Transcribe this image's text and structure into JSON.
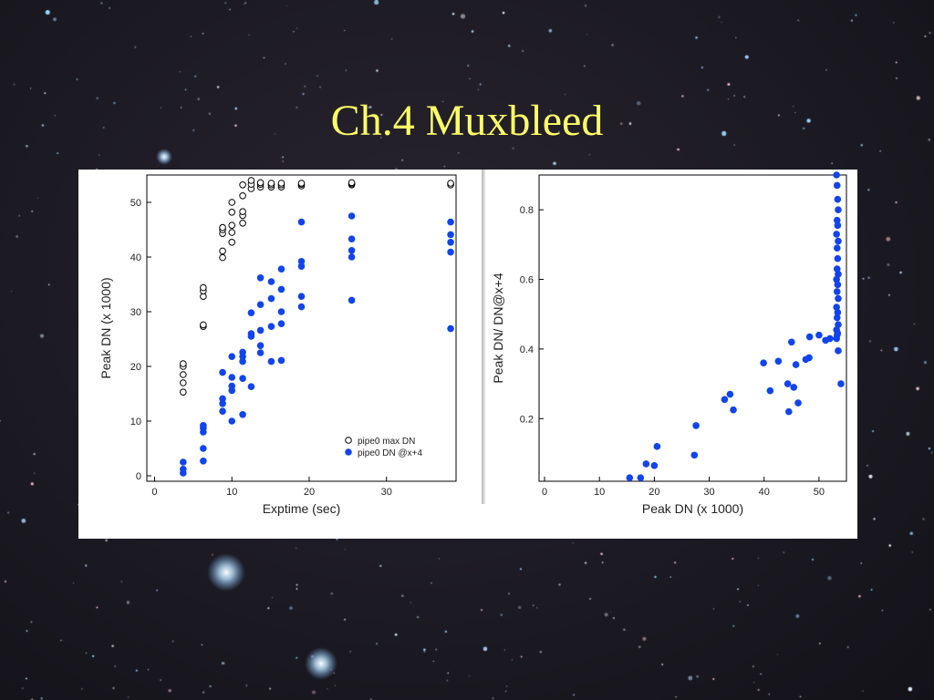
{
  "slide": {
    "title": "Ch.4 Muxbleed"
  },
  "colors": {
    "background": "#1c1a22",
    "title": "#ffff66",
    "panel": "#ffffff",
    "series_blue": "#1144ee",
    "open_marker": "#000000"
  },
  "chart_data": [
    {
      "type": "scatter",
      "title": "",
      "xlabel": "Exptime (sec)",
      "ylabel": "Peak DN (x 1000)",
      "xlim": [
        -1,
        39
      ],
      "ylim": [
        -1,
        55
      ],
      "x_ticks": [
        "0",
        "10",
        "20",
        "30"
      ],
      "y_ticks": [
        "0",
        "10",
        "20",
        "30",
        "40",
        "50"
      ],
      "grid": false,
      "legend": {
        "position": "bottom-right"
      },
      "series": [
        {
          "name": "pipe0 max DN",
          "marker": "open-circle",
          "color": "#000000",
          "points": [
            [
              3.7,
              15.3
            ],
            [
              3.7,
              17.0
            ],
            [
              3.7,
              18.5
            ],
            [
              3.7,
              20.0
            ],
            [
              3.7,
              20.5
            ],
            [
              6.3,
              27.3
            ],
            [
              6.3,
              27.6
            ],
            [
              6.3,
              32.8
            ],
            [
              6.3,
              33.8
            ],
            [
              6.3,
              34.4
            ],
            [
              8.8,
              39.9
            ],
            [
              8.8,
              41.1
            ],
            [
              8.8,
              44.3
            ],
            [
              8.8,
              45.0
            ],
            [
              8.8,
              45.4
            ],
            [
              10.0,
              42.7
            ],
            [
              10.0,
              44.5
            ],
            [
              10.0,
              45.8
            ],
            [
              10.0,
              48.2
            ],
            [
              10.0,
              50.0
            ],
            [
              11.4,
              46.2
            ],
            [
              11.4,
              47.6
            ],
            [
              11.4,
              48.3
            ],
            [
              11.4,
              51.2
            ],
            [
              11.4,
              53.2
            ],
            [
              12.5,
              52.5
            ],
            [
              12.5,
              53.3
            ],
            [
              12.5,
              54.0
            ],
            [
              13.7,
              52.8
            ],
            [
              13.7,
              53.3
            ],
            [
              13.7,
              53.6
            ],
            [
              15.1,
              52.8
            ],
            [
              15.1,
              53.2
            ],
            [
              15.1,
              53.5
            ],
            [
              16.4,
              52.8
            ],
            [
              16.4,
              53.2
            ],
            [
              16.4,
              53.5
            ],
            [
              19.0,
              53.0
            ],
            [
              19.0,
              53.3
            ],
            [
              19.0,
              53.5
            ],
            [
              25.5,
              53.2
            ],
            [
              25.5,
              53.4
            ],
            [
              25.5,
              53.6
            ],
            [
              38.3,
              53.2
            ],
            [
              38.3,
              53.5
            ]
          ]
        },
        {
          "name": "pipe0 DN @x+4",
          "marker": "filled-circle",
          "color": "#1144ee",
          "points": [
            [
              3.7,
              0.5
            ],
            [
              3.7,
              1.2
            ],
            [
              3.7,
              2.5
            ],
            [
              6.3,
              2.7
            ],
            [
              6.3,
              5.0
            ],
            [
              6.3,
              8.0
            ],
            [
              6.3,
              8.7
            ],
            [
              6.3,
              9.2
            ],
            [
              8.8,
              11.8
            ],
            [
              8.8,
              13.2
            ],
            [
              8.8,
              14.1
            ],
            [
              8.8,
              18.9
            ],
            [
              10.0,
              10.0
            ],
            [
              10.0,
              15.6
            ],
            [
              10.0,
              16.4
            ],
            [
              10.0,
              18.0
            ],
            [
              10.0,
              21.8
            ],
            [
              11.4,
              11.2
            ],
            [
              11.4,
              17.8
            ],
            [
              11.4,
              20.9
            ],
            [
              11.4,
              21.8
            ],
            [
              11.4,
              22.6
            ],
            [
              12.5,
              16.3
            ],
            [
              12.5,
              25.5
            ],
            [
              12.5,
              26.0
            ],
            [
              12.5,
              29.8
            ],
            [
              13.7,
              22.5
            ],
            [
              13.7,
              23.8
            ],
            [
              13.7,
              26.6
            ],
            [
              13.7,
              31.3
            ],
            [
              13.7,
              36.2
            ],
            [
              15.1,
              20.9
            ],
            [
              15.1,
              27.3
            ],
            [
              15.1,
              32.4
            ],
            [
              15.1,
              35.5
            ],
            [
              16.4,
              21.1
            ],
            [
              16.4,
              27.8
            ],
            [
              16.4,
              30.0
            ],
            [
              16.4,
              34.1
            ],
            [
              16.4,
              37.8
            ],
            [
              19.0,
              30.9
            ],
            [
              19.0,
              32.8
            ],
            [
              19.0,
              38.3
            ],
            [
              19.0,
              39.2
            ],
            [
              19.0,
              46.4
            ],
            [
              25.5,
              32.1
            ],
            [
              25.5,
              40.0
            ],
            [
              25.5,
              41.2
            ],
            [
              25.5,
              43.3
            ],
            [
              25.5,
              47.5
            ],
            [
              38.3,
              26.9
            ],
            [
              38.3,
              40.9
            ],
            [
              38.3,
              42.7
            ],
            [
              38.3,
              44.1
            ],
            [
              38.3,
              46.4
            ]
          ]
        }
      ]
    },
    {
      "type": "scatter",
      "title": "",
      "xlabel": "Peak DN (x 1000)",
      "ylabel": "Peak DN/ DN@x+4",
      "xlim": [
        -1,
        55
      ],
      "ylim": [
        0.02,
        0.9
      ],
      "x_ticks": [
        "0",
        "10",
        "20",
        "30",
        "40",
        "50"
      ],
      "y_ticks": [
        "0.2",
        "0.4",
        "0.6",
        "0.8"
      ],
      "grid": false,
      "series": [
        {
          "marker": "filled-circle",
          "color": "#1144ee",
          "points": [
            [
              15.5,
              0.03
            ],
            [
              17.5,
              0.03
            ],
            [
              18.5,
              0.07
            ],
            [
              20.0,
              0.065
            ],
            [
              20.5,
              0.12
            ],
            [
              27.3,
              0.095
            ],
            [
              27.6,
              0.18
            ],
            [
              32.8,
              0.255
            ],
            [
              33.8,
              0.27
            ],
            [
              34.4,
              0.225
            ],
            [
              39.9,
              0.36
            ],
            [
              41.1,
              0.28
            ],
            [
              42.6,
              0.365
            ],
            [
              44.3,
              0.3
            ],
            [
              44.5,
              0.22
            ],
            [
              45.0,
              0.42
            ],
            [
              45.4,
              0.29
            ],
            [
              45.8,
              0.355
            ],
            [
              46.2,
              0.245
            ],
            [
              47.6,
              0.37
            ],
            [
              48.2,
              0.375
            ],
            [
              48.3,
              0.435
            ],
            [
              50.0,
              0.44
            ],
            [
              51.2,
              0.425
            ],
            [
              52.0,
              0.43
            ],
            [
              53.2,
              0.43
            ],
            [
              53.3,
              0.44
            ],
            [
              53.5,
              0.395
            ],
            [
              54.0,
              0.3
            ],
            [
              53.2,
              0.9
            ],
            [
              53.3,
              0.87
            ],
            [
              53.4,
              0.83
            ],
            [
              53.5,
              0.8
            ],
            [
              53.3,
              0.77
            ],
            [
              53.4,
              0.755
            ],
            [
              53.2,
              0.73
            ],
            [
              53.5,
              0.71
            ],
            [
              53.3,
              0.69
            ],
            [
              53.4,
              0.66
            ],
            [
              53.3,
              0.63
            ],
            [
              53.5,
              0.615
            ],
            [
              53.2,
              0.6
            ],
            [
              53.4,
              0.585
            ],
            [
              53.3,
              0.565
            ],
            [
              53.5,
              0.545
            ],
            [
              53.2,
              0.52
            ],
            [
              53.4,
              0.505
            ],
            [
              53.3,
              0.49
            ],
            [
              53.5,
              0.47
            ],
            [
              53.2,
              0.455
            ],
            [
              53.4,
              0.445
            ]
          ]
        }
      ]
    }
  ]
}
